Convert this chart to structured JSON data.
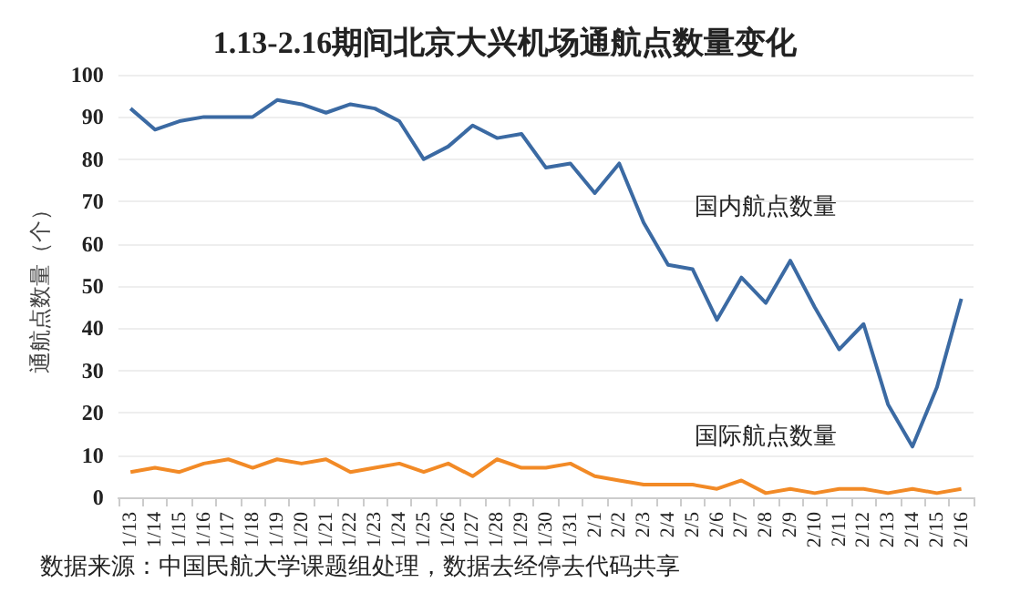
{
  "chart_data": {
    "type": "line",
    "title": "1.13-2.16期间北京大兴机场通航点数量变化",
    "ylabel": "通航点数量（个）",
    "categories": [
      "1/13",
      "1/14",
      "1/15",
      "1/16",
      "1/17",
      "1/18",
      "1/19",
      "1/20",
      "1/21",
      "1/22",
      "1/23",
      "1/24",
      "1/25",
      "1/26",
      "1/27",
      "1/28",
      "1/29",
      "1/30",
      "1/31",
      "2/1",
      "2/2",
      "2/3",
      "2/4",
      "2/5",
      "2/6",
      "2/7",
      "2/8",
      "2/9",
      "2/10",
      "2/11",
      "2/12",
      "2/13",
      "2/14",
      "2/15",
      "2/16"
    ],
    "series": [
      {
        "name": "国内航点数量",
        "color": "#3b6aa3",
        "values": [
          92,
          87,
          89,
          90,
          90,
          90,
          94,
          93,
          91,
          93,
          92,
          89,
          80,
          83,
          88,
          85,
          86,
          78,
          79,
          72,
          79,
          65,
          55,
          54,
          42,
          52,
          46,
          56,
          45,
          35,
          41,
          22,
          12,
          26,
          47
        ]
      },
      {
        "name": "国际航点数量",
        "color": "#f28a26",
        "values": [
          6,
          7,
          6,
          8,
          9,
          7,
          9,
          8,
          9,
          6,
          7,
          8,
          6,
          8,
          5,
          9,
          7,
          7,
          8,
          5,
          4,
          3,
          3,
          3,
          2,
          4,
          1,
          2,
          1,
          2,
          2,
          1,
          2,
          1,
          2
        ]
      }
    ],
    "ylim": [
      0,
      100
    ],
    "yticks": [
      0,
      10,
      20,
      30,
      40,
      50,
      60,
      70,
      80,
      90,
      100
    ],
    "grid": "y",
    "marker": "none",
    "line_style": "solid",
    "annotations": [
      "数据来源：中国民航大学课题组处理，数据去经停去代码共享"
    ]
  }
}
